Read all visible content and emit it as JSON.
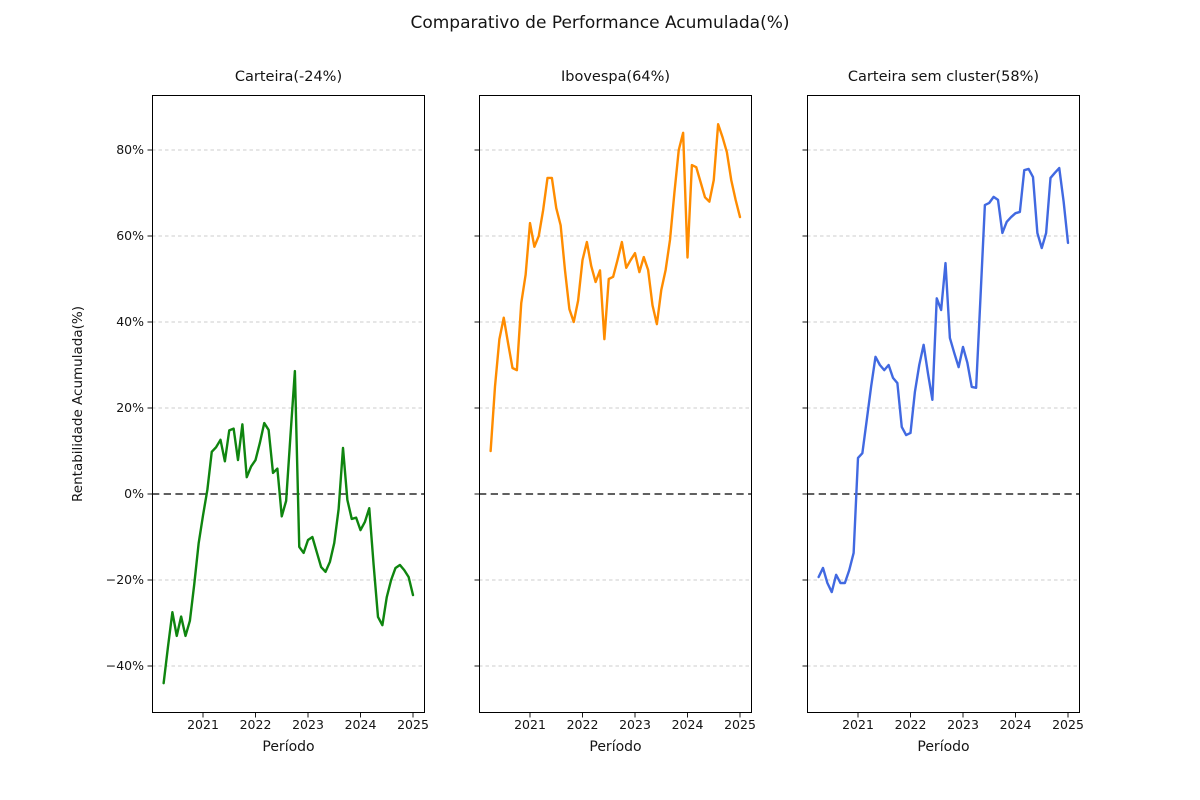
{
  "figure": {
    "suptitle": "Comparativo de Performance Acumulada(%)",
    "xlabel": "Período",
    "ylabel": "Rentabilidade Acumulada(%)",
    "background": "#ffffff"
  },
  "axes": {
    "x_tick_labels": [
      "2021",
      "2022",
      "2023",
      "2024",
      "2025"
    ],
    "y_ticks": [
      {
        "label": "80%",
        "value": 80
      },
      {
        "label": "60%",
        "value": 60
      },
      {
        "label": "40%",
        "value": 40
      },
      {
        "label": "20%",
        "value": 20
      },
      {
        "label": "0%",
        "value": 0
      },
      {
        "label": "−20%",
        "value": -20
      },
      {
        "label": "−40%",
        "value": -40
      }
    ],
    "ylim": [
      -50.9,
      92.8
    ],
    "grid_color": "#cccccc",
    "zero_line_color": "#000000"
  },
  "chart_data": [
    {
      "type": "line",
      "title": "Carteira(-24%)",
      "final_return_pct": -24,
      "x_start": "2020-04",
      "x_end": "2025-01",
      "frequency": "monthly",
      "series": [
        {
          "name": "Carteira",
          "color": "#0f850f",
          "values": [
            -44,
            -35.5,
            -27.5,
            -33,
            -28.5,
            -33,
            -29.5,
            -21,
            -11.5,
            -5,
            1,
            9.8,
            10.9,
            12.6,
            7.6,
            14.8,
            15.2,
            7.9,
            16.2,
            3.9,
            6.4,
            7.9,
            11.9,
            16.5,
            14.9,
            4.9,
            5.9,
            -5.2,
            -1.6,
            13.7,
            28.6,
            -12.3,
            -13.7,
            -10.7,
            -10,
            -13.5,
            -17,
            -18.1,
            -15.8,
            -11.4,
            -3.5,
            10.7,
            -1.4,
            -5.8,
            -5.5,
            -8.4,
            -6.5,
            -3.3,
            -16.5,
            -28.6,
            -30.5,
            -24,
            -20,
            -17.2,
            -16.5,
            -17.7,
            -19.3,
            -23.5
          ]
        }
      ]
    },
    {
      "type": "line",
      "title": "Ibovespa(64%)",
      "final_return_pct": 64,
      "x_start": "2020-04",
      "x_end": "2025-01",
      "frequency": "monthly",
      "series": [
        {
          "name": "Ibovespa",
          "color": "#ff8c00",
          "values": [
            10,
            25,
            36,
            41,
            35,
            29.3,
            28.8,
            44.4,
            51,
            63,
            57.5,
            60,
            66,
            73.5,
            73.5,
            66.5,
            62.5,
            52,
            43,
            40,
            45,
            54.4,
            58.6,
            53,
            49.3,
            52,
            36,
            50,
            50.5,
            54.4,
            58.6,
            52.6,
            54.4,
            56,
            51.6,
            55.1,
            52.1,
            43.9,
            39.5,
            47.4,
            52.1,
            59.1,
            70,
            80,
            84,
            55,
            76.5,
            76,
            72.5,
            69,
            68,
            73,
            86,
            83,
            79.5,
            73,
            68.4,
            64.4
          ]
        }
      ]
    },
    {
      "type": "line",
      "title": "Carteira sem cluster(58%)",
      "final_return_pct": 58,
      "x_start": "2020-04",
      "x_end": "2025-01",
      "frequency": "monthly",
      "series": [
        {
          "name": "Carteira sem cluster",
          "color": "#4169e1",
          "values": [
            -19.3,
            -17.2,
            -20.7,
            -22.8,
            -18.8,
            -20.7,
            -20.7,
            -17.7,
            -13.7,
            8.4,
            9.5,
            17.2,
            25,
            31.9,
            30,
            28.8,
            30,
            27,
            25.8,
            15.6,
            13.7,
            14.2,
            23.7,
            30,
            34.7,
            28,
            21.9,
            45.5,
            42.8,
            53.7,
            36.3,
            32.8,
            29.5,
            34.2,
            30.5,
            24.9,
            24.7,
            45.8,
            67.2,
            67.7,
            69.1,
            68.4,
            60.7,
            63.3,
            64.4,
            65.3,
            65.6,
            75.3,
            75.6,
            73.7,
            60.7,
            57.2,
            60.7,
            73.5,
            74.7,
            75.8,
            68,
            58.4
          ]
        }
      ]
    }
  ]
}
